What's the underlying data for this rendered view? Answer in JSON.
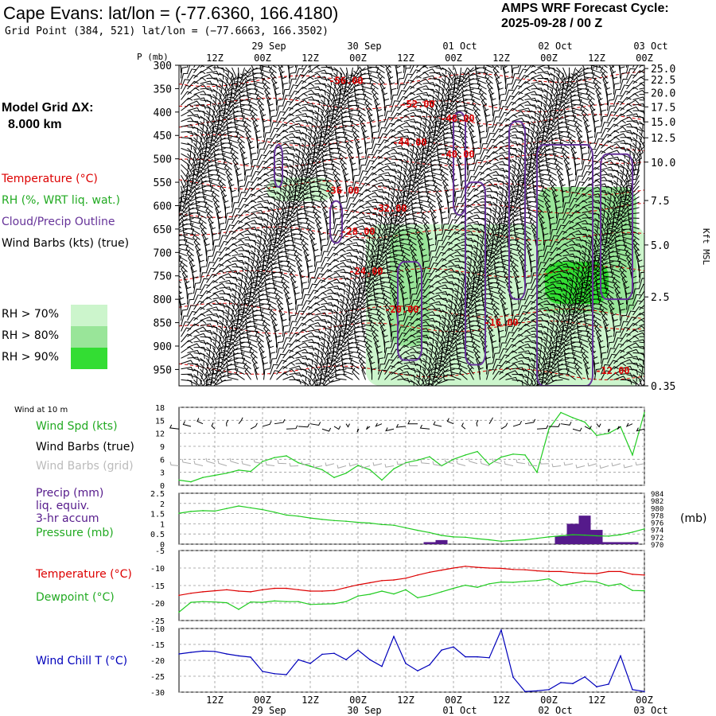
{
  "header": {
    "title": "Cape Evans:  lat/lon = (-77.6360, 166.4180)",
    "grid_point": "Grid Point (384, 521) lat/lon = (−77.6663, 166.3502)",
    "cycle_line1": "AMPS WRF Forecast Cycle:",
    "cycle_line2": "2025-09-28 / 00  Z"
  },
  "left_panel": {
    "model_grid": "Model Grid ΔX:",
    "model_grid_value": "8.000 km",
    "legend": {
      "temperature": "Temperature (°C)",
      "rh": "RH (%, WRT liq. wat.)",
      "cloud": "Cloud/Precip Outline",
      "wind": "Wind Barbs (kts) (true)"
    },
    "rh_levels": [
      {
        "label": "RH > 70%",
        "color": "#ccf5cc"
      },
      {
        "label": "RH > 80%",
        "color": "#99e599"
      },
      {
        "label": "RH > 90%",
        "color": "#33dd33"
      }
    ]
  },
  "colors": {
    "temperature": "#dd0000",
    "rh_text": "#22aa22",
    "cloud": "#663399",
    "wind_spd": "#22cc22",
    "wind_grid": "#aaaaaa",
    "precip": "#551a8b",
    "pressure": "#22cc22",
    "dewpoint": "#22cc22",
    "windchill": "#0000bb",
    "grid": "#999999"
  },
  "time_axis": {
    "date_labels": [
      "29 Sep",
      "30 Sep",
      "01 Oct",
      "02 Oct",
      "03 Oct"
    ],
    "hour_labels": [
      "12Z",
      "00Z",
      "12Z",
      "00Z",
      "12Z",
      "00Z",
      "12Z",
      "00Z",
      "12Z",
      "00Z"
    ],
    "hours_from_start": [
      12,
      24,
      36,
      48,
      60,
      72,
      84,
      96,
      108,
      120
    ],
    "date_hours": [
      24,
      48,
      72,
      96,
      120
    ],
    "range_hours": [
      3,
      120
    ]
  },
  "panels": {
    "wind10m": {
      "header": "Wind at 10 m",
      "label1": "Wind Spd (kts)",
      "label2": "Wind Barbs (true)",
      "label3": "Wind Barbs (grid)"
    },
    "precip": {
      "label1": "Precip (mm)",
      "label2": "liq. equiv.",
      "label3": "3-hr accum",
      "label4": "Pressure (mb)",
      "right_unit": "(mb)"
    },
    "temp": {
      "label1": "Temperature (°C)",
      "label2": "Dewpoint (°C)"
    },
    "chill": {
      "label1": "Wind Chill T (°C)"
    }
  },
  "chart_data": [
    {
      "type": "heatmap",
      "title": "Cape Evans:  lat/lon = (-77.6360, 166.4180)",
      "xlabel": "",
      "ylabel": "P (mb)",
      "y2label": "Kft MSL",
      "y_ticks_mb": [
        300,
        350,
        400,
        450,
        500,
        550,
        600,
        650,
        700,
        750,
        800,
        850,
        900,
        950
      ],
      "y_range_mb": [
        300,
        985
      ],
      "y2_ticks_kft": [
        {
          "label": "25.0",
          "mb": 307
        },
        {
          "label": "22.5",
          "mb": 331
        },
        {
          "label": "20.0",
          "mb": 359
        },
        {
          "label": "17.5",
          "mb": 389
        },
        {
          "label": "15.0",
          "mb": 421
        },
        {
          "label": "12.5",
          "mb": 455
        },
        {
          "label": "10.0",
          "mb": 507
        },
        {
          "label": "7.5",
          "mb": 589
        },
        {
          "label": "5.0",
          "mb": 684
        },
        {
          "label": "2.5",
          "mb": 795
        },
        {
          "label": "0.35",
          "mb": 985
        }
      ],
      "temperature_labels": [
        {
          "text": "-56.00",
          "hour": 45,
          "mb": 333
        },
        {
          "text": "-52.00",
          "hour": 63,
          "mb": 383
        },
        {
          "text": "-48.00",
          "hour": 73,
          "mb": 414
        },
        {
          "text": "-44.00",
          "hour": 61,
          "mb": 465
        },
        {
          "text": "-40.00",
          "hour": 73,
          "mb": 490
        },
        {
          "text": "-36.00",
          "hour": 44,
          "mb": 568
        },
        {
          "text": "-32.00",
          "hour": 56,
          "mb": 606
        },
        {
          "text": "-28.00",
          "hour": 48,
          "mb": 655
        },
        {
          "text": "-24.00",
          "hour": 50,
          "mb": 740
        },
        {
          "text": "-20.00",
          "hour": 59,
          "mb": 822
        },
        {
          "text": "-16.00",
          "hour": 84,
          "mb": 850
        },
        {
          "text": "-12.00",
          "hour": 112,
          "mb": 953
        }
      ],
      "rh_regions": [
        {
          "level": 70,
          "hours": [
            25,
            42
          ],
          "mb": [
            540,
            590
          ]
        },
        {
          "level": 70,
          "hours": [
            50,
            120
          ],
          "mb": [
            640,
            985
          ]
        },
        {
          "level": 80,
          "hours": [
            56,
            66
          ],
          "mb": [
            650,
            900
          ]
        },
        {
          "level": 80,
          "hours": [
            93,
            118
          ],
          "mb": [
            560,
            830
          ]
        },
        {
          "level": 90,
          "hours": [
            95,
            111
          ],
          "mb": [
            720,
            810
          ]
        }
      ],
      "cloud_outlines": [
        {
          "hours": [
            27,
            29
          ],
          "mb": [
            470,
            560
          ]
        },
        {
          "hours": [
            41,
            44
          ],
          "mb": [
            590,
            680
          ]
        },
        {
          "hours": [
            58,
            64
          ],
          "mb": [
            720,
            930
          ]
        },
        {
          "hours": [
            72,
            75
          ],
          "mb": [
            400,
            620
          ]
        },
        {
          "hours": [
            75,
            80
          ],
          "mb": [
            550,
            940
          ]
        },
        {
          "hours": [
            86,
            90
          ],
          "mb": [
            420,
            800
          ]
        },
        {
          "hours": [
            93,
            107
          ],
          "mb": [
            470,
            985
          ]
        },
        {
          "hours": [
            109,
            117
          ],
          "mb": [
            490,
            800
          ]
        }
      ]
    },
    {
      "type": "line",
      "title": "Wind at 10 m",
      "ylabel": "Wind Spd (kts)",
      "ylim": [
        0,
        18
      ],
      "y_ticks": [
        0,
        3,
        6,
        9,
        12,
        15,
        18
      ],
      "x": [
        3,
        6,
        9,
        12,
        15,
        18,
        21,
        24,
        27,
        30,
        33,
        36,
        39,
        42,
        45,
        48,
        51,
        54,
        57,
        60,
        63,
        66,
        69,
        72,
        75,
        78,
        81,
        84,
        87,
        90,
        93,
        96,
        99,
        102,
        105,
        108,
        111,
        114,
        117,
        120
      ],
      "series": [
        {
          "name": "Wind Spd (kts)",
          "values": [
            1.2,
            0.8,
            1.8,
            2.3,
            2.8,
            3.5,
            3.2,
            5.5,
            6.4,
            6.8,
            5.2,
            4.4,
            3.6,
            1.8,
            2.8,
            4.6,
            3.6,
            1.2,
            3.8,
            5.2,
            5.8,
            6.6,
            4.5,
            6.0,
            7.0,
            7.8,
            4.8,
            6.5,
            7.2,
            7.0,
            3.0,
            13.0,
            16.8,
            15.6,
            14.6,
            11.5,
            12.0,
            13.5,
            7.0,
            16.8
          ]
        }
      ]
    },
    {
      "type": "bar",
      "title": "Precip (mm) / Pressure (mb)",
      "ylabel": "Precip (mm)",
      "y2label": "(mb)",
      "ylim": [
        0,
        2.5
      ],
      "y_ticks": [
        0.0,
        0.5,
        1.0,
        1.5,
        2.0,
        2.5
      ],
      "y2lim": [
        970,
        984
      ],
      "y2_ticks": [
        970,
        972,
        974,
        976,
        978,
        980,
        982,
        984
      ],
      "precip_hours": [
        66,
        69,
        99,
        102,
        105,
        108,
        111,
        114,
        117
      ],
      "precip_values": [
        0.1,
        0.2,
        0.4,
        1.0,
        1.4,
        0.7,
        0.1,
        0.1,
        0.1
      ],
      "pressure_hours": [
        3,
        6,
        9,
        12,
        15,
        18,
        21,
        24,
        27,
        30,
        33,
        36,
        39,
        42,
        45,
        48,
        51,
        54,
        57,
        60,
        63,
        66,
        69,
        72,
        75,
        78,
        81,
        84,
        87,
        90,
        93,
        96,
        99,
        102,
        105,
        108,
        111,
        114,
        117,
        120
      ],
      "pressure_values": [
        978.5,
        979,
        979.2,
        979.1,
        979.8,
        980.5,
        980.0,
        979.5,
        978.8,
        978.0,
        977.7,
        977.2,
        976.8,
        976.5,
        976.3,
        976.0,
        975.8,
        975.4,
        975.2,
        974.5,
        973.8,
        973.2,
        972.4,
        972.0,
        971.9,
        971.5,
        971.2,
        970.8,
        971.0,
        971.2,
        971.6,
        972.0,
        972.3,
        972.6,
        972.5,
        972.3,
        972.2,
        972.6,
        973.3,
        974.2
      ]
    },
    {
      "type": "line",
      "title": "Temperature / Dewpoint",
      "ylabel": "Temperature (°C)",
      "ylim": [
        -25,
        -5
      ],
      "y_ticks": [
        -25,
        -20,
        -15,
        -10,
        -5
      ],
      "x": [
        3,
        6,
        9,
        12,
        15,
        18,
        21,
        24,
        27,
        30,
        33,
        36,
        39,
        42,
        45,
        48,
        51,
        54,
        57,
        60,
        63,
        66,
        69,
        72,
        75,
        78,
        81,
        84,
        87,
        90,
        93,
        96,
        99,
        102,
        105,
        108,
        111,
        114,
        117,
        120
      ],
      "series": [
        {
          "name": "Temperature (°C)",
          "values": [
            -17.8,
            -17.2,
            -16.8,
            -16.5,
            -16.2,
            -16.6,
            -16.8,
            -16.2,
            -15.8,
            -15.8,
            -16.2,
            -16.6,
            -16.6,
            -16.4,
            -15.6,
            -14.8,
            -14.2,
            -13.6,
            -13.4,
            -12.9,
            -12.0,
            -11.2,
            -10.6,
            -10.0,
            -9.5,
            -9.8,
            -10.0,
            -10.1,
            -10.4,
            -10.5,
            -10.8,
            -11.0,
            -11.0,
            -11.3,
            -11.5,
            -11.6,
            -11.0,
            -11.0,
            -11.8,
            -12.0
          ]
        },
        {
          "name": "Dewpoint (°C)",
          "values": [
            -22.6,
            -19.8,
            -19.6,
            -19.7,
            -19.9,
            -21.8,
            -19.7,
            -19.8,
            -19.4,
            -19.6,
            -19.6,
            -20.4,
            -20.3,
            -20.2,
            -19.6,
            -18.0,
            -17.5,
            -16.6,
            -17.4,
            -16.2,
            -18.5,
            -17.8,
            -16.8,
            -15.8,
            -14.9,
            -15.5,
            -14.5,
            -14.0,
            -14.1,
            -13.8,
            -13.6,
            -13.1,
            -15.0,
            -14.4,
            -13.7,
            -14.0,
            -15.1,
            -14.5,
            -16.4,
            -16.5
          ]
        }
      ]
    },
    {
      "type": "line",
      "title": "Wind Chill",
      "ylabel": "Wind Chill T (°C)",
      "ylim": [
        -30,
        -10
      ],
      "y_ticks": [
        -30,
        -25,
        -20,
        -15,
        -10
      ],
      "x": [
        3,
        6,
        9,
        12,
        15,
        18,
        21,
        24,
        27,
        30,
        33,
        36,
        39,
        42,
        45,
        48,
        51,
        54,
        57,
        60,
        63,
        66,
        69,
        72,
        75,
        78,
        81,
        84,
        87,
        90,
        93,
        96,
        99,
        102,
        105,
        108,
        111,
        114,
        117,
        120
      ],
      "series": [
        {
          "name": "Wind Chill T (°C)",
          "values": [
            -18.0,
            -17.5,
            -17.1,
            -17.2,
            -18.0,
            -18.6,
            -19.0,
            -23.5,
            -24.2,
            -24.5,
            -19.8,
            -21.0,
            -18.1,
            -17.8,
            -19.8,
            -16.8,
            -19.8,
            -21.9,
            -12.5,
            -21.0,
            -23.3,
            -21.4,
            -16.8,
            -15.8,
            -18.9,
            -18.9,
            -19.2,
            -10.5,
            -25.3,
            -29.8,
            -29.6,
            -29.2,
            -27.0,
            -27.3,
            -25.2,
            -28.3,
            -27.5,
            -18.6,
            -29.2,
            -29.8
          ]
        }
      ]
    }
  ]
}
